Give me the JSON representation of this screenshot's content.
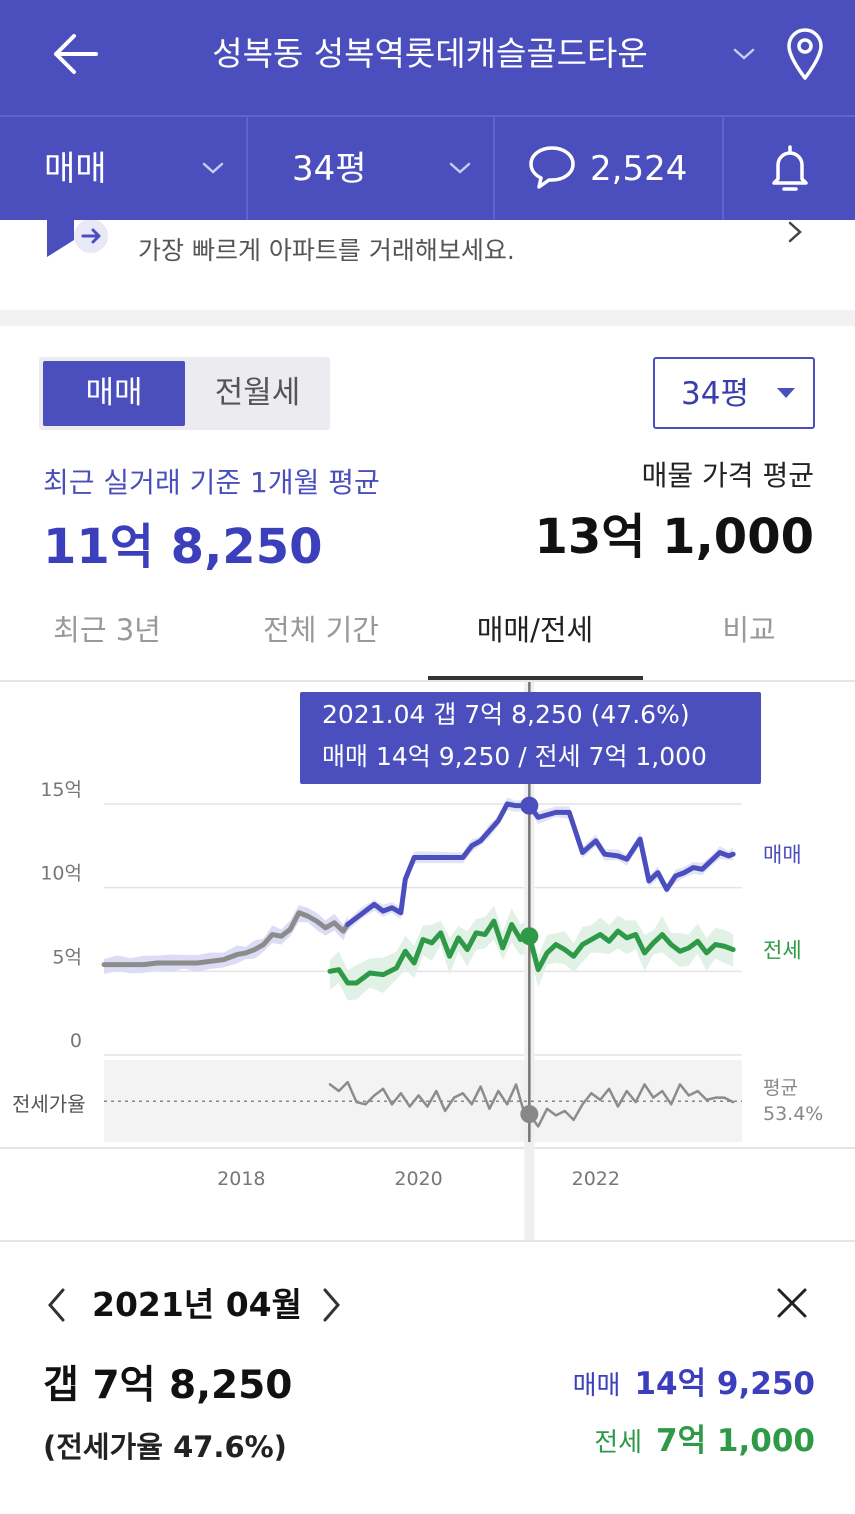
{
  "header": {
    "title": "성복동 성복역롯데캐슬골드타운",
    "deal_type": "매매",
    "area": "34평",
    "comment_count": "2,524"
  },
  "banner": {
    "text": "가장 빠르게 아파트를 거래해보세요."
  },
  "segment": {
    "active": "매매",
    "inactive": "전월세"
  },
  "size_dropdown": {
    "selected": "34평"
  },
  "prices": {
    "recent_label": "최근 실거래 기준 1개월 평균",
    "recent_value": "11억 8,250",
    "listing_label": "매물 가격 평균",
    "listing_value": "13억 1,000"
  },
  "period_tabs": [
    "최근 3년",
    "전체 기간",
    "매매/전세",
    "비교"
  ],
  "active_period_tab": 2,
  "tooltip": {
    "line1": "2021.04  갭 7억 8,250 (47.6%)",
    "line2": "매매 14억 9,250 / 전세 7억 1,000"
  },
  "chart_data": {
    "type": "line",
    "y_tick_labels": [
      "15억",
      "10억",
      "5억",
      "0"
    ],
    "y_ticks": [
      15,
      10,
      5,
      0
    ],
    "ylim": [
      0,
      15
    ],
    "x_tick_labels": [
      "2018",
      "2020",
      "2022"
    ],
    "x_ticks": [
      2018,
      2020,
      2022
    ],
    "xlim": [
      2016.45,
      2023.65
    ],
    "grid": true,
    "ratio_axis_label": "전세가율",
    "ratio_average_label": "평균",
    "ratio_average_value": "53.4%",
    "ratio_average": 53.4,
    "ratio_range": [
      35,
      72
    ],
    "highlight_x": 2021.25,
    "colors": {
      "sale": "#4b4fbd",
      "jeonse": "#2e9a48",
      "older": "#8c8c8c",
      "ratio": "#8c8c8c"
    },
    "series": [
      {
        "name": "매매",
        "x": [
          2019.2,
          2019.35,
          2019.5,
          2019.6,
          2019.7,
          2019.8,
          2019.85,
          2019.95,
          2020.0,
          2020.5,
          2020.6,
          2020.7,
          2020.8,
          2020.9,
          2021.0,
          2021.1,
          2021.25,
          2021.35,
          2021.55,
          2021.7,
          2021.85,
          2022.0,
          2022.1,
          2022.25,
          2022.35,
          2022.5,
          2022.6,
          2022.7,
          2022.8,
          2022.9,
          2023.0,
          2023.1,
          2023.2,
          2023.3,
          2023.4,
          2023.5,
          2023.55
        ],
        "values": [
          7.8,
          8.4,
          9.0,
          8.6,
          8.8,
          8.5,
          10.5,
          11.8,
          11.8,
          11.8,
          12.5,
          12.8,
          13.4,
          14.0,
          15.0,
          14.9,
          14.9,
          14.2,
          14.5,
          14.5,
          12.1,
          12.8,
          12.0,
          11.9,
          11.7,
          12.9,
          10.4,
          10.9,
          9.9,
          10.7,
          10.9,
          11.2,
          11.1,
          11.6,
          12.1,
          11.9,
          12.0
        ]
      },
      {
        "name": "전세",
        "x": [
          2019.0,
          2019.1,
          2019.2,
          2019.3,
          2019.45,
          2019.6,
          2019.75,
          2019.85,
          2019.95,
          2020.05,
          2020.15,
          2020.25,
          2020.35,
          2020.45,
          2020.55,
          2020.65,
          2020.75,
          2020.85,
          2020.95,
          2021.05,
          2021.15,
          2021.25,
          2021.35,
          2021.45,
          2021.55,
          2021.65,
          2021.75,
          2021.85,
          2021.95,
          2022.05,
          2022.15,
          2022.25,
          2022.35,
          2022.45,
          2022.55,
          2022.65,
          2022.75,
          2022.85,
          2022.95,
          2023.05,
          2023.15,
          2023.25,
          2023.35,
          2023.45,
          2023.55
        ],
        "values": [
          5.0,
          5.1,
          4.3,
          4.3,
          4.9,
          4.8,
          5.2,
          6.2,
          5.5,
          6.9,
          6.7,
          7.3,
          5.9,
          7.0,
          6.3,
          7.3,
          7.2,
          8.0,
          6.4,
          7.8,
          6.9,
          7.1,
          5.1,
          6.1,
          6.6,
          6.3,
          5.9,
          6.6,
          6.9,
          7.2,
          6.8,
          7.4,
          7.0,
          7.2,
          6.1,
          6.7,
          7.2,
          6.6,
          6.2,
          6.4,
          6.8,
          6.1,
          6.6,
          6.5,
          6.3
        ]
      },
      {
        "name": "",
        "x": [
          2016.45,
          2016.6,
          2016.75,
          2016.9,
          2017.05,
          2017.2,
          2017.35,
          2017.5,
          2017.65,
          2017.8,
          2017.95,
          2018.05,
          2018.15,
          2018.25,
          2018.35,
          2018.45,
          2018.55,
          2018.65,
          2018.75,
          2018.85,
          2018.95,
          2019.05,
          2019.15,
          2019.2
        ],
        "values": [
          5.4,
          5.4,
          5.4,
          5.4,
          5.5,
          5.5,
          5.5,
          5.5,
          5.6,
          5.7,
          6.0,
          6.1,
          6.3,
          6.6,
          7.2,
          7.1,
          7.5,
          8.5,
          8.3,
          8.0,
          7.6,
          7.9,
          7.4,
          7.8
        ]
      },
      {
        "name": "",
        "x": [
          2019.0,
          2019.1,
          2019.2,
          2019.3,
          2019.4,
          2019.5,
          2019.6,
          2019.7,
          2019.8,
          2019.9,
          2020.0,
          2020.1,
          2020.2,
          2020.3,
          2020.4,
          2020.5,
          2020.6,
          2020.7,
          2020.8,
          2020.9,
          2021.0,
          2021.1,
          2021.2,
          2021.25,
          2021.35,
          2021.45,
          2021.55,
          2021.65,
          2021.75,
          2021.85,
          2021.95,
          2022.05,
          2022.15,
          2022.25,
          2022.35,
          2022.45,
          2022.55,
          2022.65,
          2022.75,
          2022.85,
          2022.95,
          2023.05,
          2023.15,
          2023.25,
          2023.35,
          2023.45,
          2023.55
        ],
        "values": [
          61,
          58,
          62,
          53,
          52,
          56,
          59,
          52,
          57,
          51,
          56,
          51,
          58,
          49,
          55,
          57,
          52,
          60,
          50,
          58,
          52,
          61,
          47,
          47.6,
          42,
          50,
          47,
          49,
          45,
          52,
          57,
          54,
          59,
          51,
          58,
          53,
          61,
          55,
          58,
          52,
          61,
          56,
          58,
          54,
          55,
          55,
          53
        ]
      }
    ]
  },
  "detail": {
    "date": "2021년 04월",
    "gap": "갭 7억 8,250",
    "ratio": "(전세가율 47.6%)",
    "sale_label": "매매",
    "sale_value": "14억 9,250",
    "jeonse_label": "전세",
    "jeonse_value": "7억 1,000"
  },
  "icons": {
    "back": "arrow-left-icon",
    "title_chevron": "chevron-down-icon",
    "location": "map-pin-icon",
    "comment": "speech-bubble-icon",
    "notification": "bell-icon",
    "close": "close-icon"
  }
}
